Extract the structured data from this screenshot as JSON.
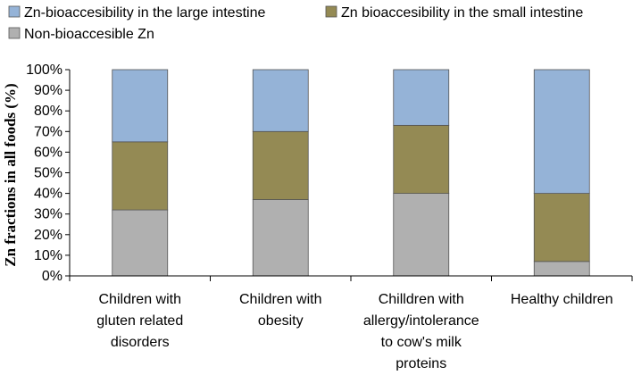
{
  "chart_data": {
    "type": "bar",
    "stacked": true,
    "normalized": true,
    "title": "",
    "xlabel": "",
    "ylabel": "Zn fractions  in all foods (%)",
    "ylim": [
      0,
      100
    ],
    "ytick_labels": [
      "0%",
      "10%",
      "20%",
      "30%",
      "40%",
      "50%",
      "60%",
      "70%",
      "80%",
      "90%",
      "100%"
    ],
    "categories": [
      [
        "Children with",
        "gluten related",
        "disorders"
      ],
      [
        "Children with",
        "obesity"
      ],
      [
        "Chilldren with",
        "allergy/intolerance",
        "to cow's milk",
        "proteins"
      ],
      [
        "Healthy children"
      ]
    ],
    "series": [
      {
        "name": "Non-bioaccesible Zn",
        "color": "#b0b0b0",
        "values": [
          32,
          37,
          40,
          7
        ]
      },
      {
        "name": "Zn bioaccesibility in the small intestine",
        "color": "#948a54",
        "values": [
          33,
          33,
          33,
          33
        ]
      },
      {
        "name": "Zn-bioaccesibility in the large intestine",
        "color": "#95b3d7",
        "values": [
          35,
          30,
          27,
          60
        ]
      }
    ],
    "legend": {
      "placement": "top-left",
      "rows": [
        [
          "Zn-bioaccesibility in the large intestine",
          "Zn bioaccesibility in the small intestine"
        ],
        [
          "Non-bioaccesible Zn"
        ]
      ]
    }
  }
}
